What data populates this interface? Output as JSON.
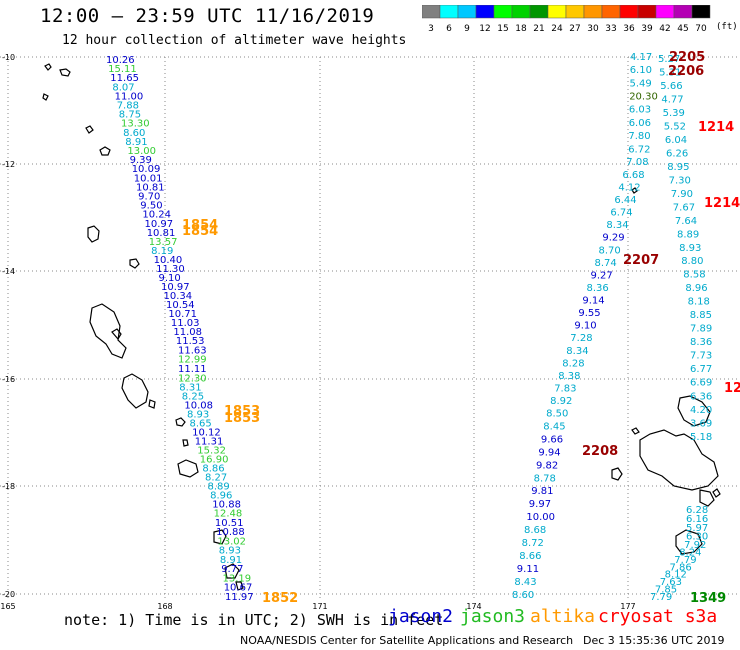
{
  "header": {
    "title": "12:00 – 23:59 UTC 11/16/2019",
    "subtitle": "12 hour collection of altimeter wave heights"
  },
  "legend": {
    "unit": "(ft)",
    "bins": [
      {
        "label": "3",
        "color": "#808080"
      },
      {
        "label": "6",
        "color": "#00ffff"
      },
      {
        "label": "9",
        "color": "#00c8ff"
      },
      {
        "label": "12",
        "color": "#0000ff"
      },
      {
        "label": "15",
        "color": "#00ff00"
      },
      {
        "label": "18",
        "color": "#00d200"
      },
      {
        "label": "21",
        "color": "#009600"
      },
      {
        "label": "24",
        "color": "#ffff00"
      },
      {
        "label": "27",
        "color": "#ffc800"
      },
      {
        "label": "30",
        "color": "#ff9600"
      },
      {
        "label": "33",
        "color": "#ff6400"
      },
      {
        "label": "36",
        "color": "#ff0000"
      },
      {
        "label": "39",
        "color": "#c80000"
      },
      {
        "label": "42",
        "color": "#ff00ff"
      },
      {
        "label": "45",
        "color": "#b400b4"
      },
      {
        "label": "70",
        "color": "#000000"
      }
    ]
  },
  "axes": {
    "lat_labels": [
      "-10",
      "-12",
      "-14",
      "-16",
      "-18",
      "-20"
    ],
    "lon_labels": [
      "165",
      "168",
      "171",
      "174",
      "177"
    ]
  },
  "colors": {
    "jason2": "#0000cc",
    "jason3": "#22bb22",
    "altika": "#ff9900",
    "cryosat": "#ff0000",
    "blue": "#0000cc",
    "cyan": "#00aacc",
    "green": "#33cc33",
    "dark": "#990000",
    "olive": "#336600",
    "darkgreen": "#008800"
  },
  "tracks": [
    {
      "id": "west-track",
      "points": [
        {
          "v": "10.26",
          "c": "blue"
        },
        {
          "v": "15.11",
          "c": "green"
        },
        {
          "v": "11.65",
          "c": "blue"
        },
        {
          "v": "8.07",
          "c": "cyan"
        },
        {
          "v": "11.00",
          "c": "blue"
        },
        {
          "v": "7.88",
          "c": "cyan"
        },
        {
          "v": "8.75",
          "c": "cyan"
        },
        {
          "v": "13.30",
          "c": "green"
        },
        {
          "v": "8.60",
          "c": "cyan"
        },
        {
          "v": "8.91",
          "c": "cyan"
        },
        {
          "v": "13.00",
          "c": "green"
        },
        {
          "v": "9.39",
          "c": "blue"
        },
        {
          "v": "10.09",
          "c": "blue"
        },
        {
          "v": "10.01",
          "c": "blue"
        },
        {
          "v": "10.81",
          "c": "blue"
        },
        {
          "v": "9.70",
          "c": "blue"
        },
        {
          "v": "9.50",
          "c": "blue"
        },
        {
          "v": "10.24",
          "c": "blue"
        },
        {
          "v": "10.97",
          "c": "blue"
        },
        {
          "v": "10.81",
          "c": "blue"
        },
        {
          "v": "13.57",
          "c": "green"
        },
        {
          "v": "8.19",
          "c": "cyan"
        },
        {
          "v": "10.40",
          "c": "blue"
        },
        {
          "v": "11.30",
          "c": "blue"
        },
        {
          "v": "9.10",
          "c": "blue"
        },
        {
          "v": "10.97",
          "c": "blue"
        },
        {
          "v": "10.34",
          "c": "blue"
        },
        {
          "v": "10.54",
          "c": "blue"
        },
        {
          "v": "10.71",
          "c": "blue"
        },
        {
          "v": "11.03",
          "c": "blue"
        },
        {
          "v": "11.08",
          "c": "blue"
        },
        {
          "v": "11.53",
          "c": "blue"
        },
        {
          "v": "11.63",
          "c": "blue"
        },
        {
          "v": "12.99",
          "c": "green"
        },
        {
          "v": "11.11",
          "c": "blue"
        },
        {
          "v": "12.30",
          "c": "green"
        },
        {
          "v": "8.31",
          "c": "cyan"
        },
        {
          "v": "8.25",
          "c": "cyan"
        },
        {
          "v": "10.08",
          "c": "blue"
        },
        {
          "v": "8.93",
          "c": "cyan"
        },
        {
          "v": "8.65",
          "c": "cyan"
        },
        {
          "v": "10.12",
          "c": "blue"
        },
        {
          "v": "11.31",
          "c": "blue"
        },
        {
          "v": "15.32",
          "c": "green"
        },
        {
          "v": "16.90",
          "c": "green"
        },
        {
          "v": "8.86",
          "c": "cyan"
        },
        {
          "v": "8.27",
          "c": "cyan"
        },
        {
          "v": "8.89",
          "c": "cyan"
        },
        {
          "v": "8.96",
          "c": "cyan"
        },
        {
          "v": "10.88",
          "c": "blue"
        },
        {
          "v": "12.48",
          "c": "green"
        },
        {
          "v": "10.51",
          "c": "blue"
        },
        {
          "v": "10.88",
          "c": "blue"
        },
        {
          "v": "13.02",
          "c": "green"
        },
        {
          "v": "8.93",
          "c": "cyan"
        },
        {
          "v": "8.91",
          "c": "cyan"
        },
        {
          "v": "9.77",
          "c": "blue"
        },
        {
          "v": "13.19",
          "c": "green"
        },
        {
          "v": "10.67",
          "c": "blue"
        },
        {
          "v": "11.97",
          "c": "blue"
        }
      ]
    },
    {
      "id": "middle-track",
      "points": [
        {
          "v": "4.17",
          "c": "cyan"
        },
        {
          "v": "6.10",
          "c": "cyan"
        },
        {
          "v": "5.49",
          "c": "cyan"
        },
        {
          "v": "20.30",
          "c": "olive"
        },
        {
          "v": "6.03",
          "c": "cyan"
        },
        {
          "v": "6.06",
          "c": "cyan"
        },
        {
          "v": "7.80",
          "c": "cyan"
        },
        {
          "v": "6.72",
          "c": "cyan"
        },
        {
          "v": "7.08",
          "c": "cyan"
        },
        {
          "v": "6.68",
          "c": "cyan"
        },
        {
          "v": "4.12",
          "c": "cyan"
        },
        {
          "v": "6.44",
          "c": "cyan"
        },
        {
          "v": "6.74",
          "c": "cyan"
        },
        {
          "v": "8.34",
          "c": "cyan"
        },
        {
          "v": "9.29",
          "c": "blue"
        },
        {
          "v": "8.70",
          "c": "cyan"
        },
        {
          "v": "8.74",
          "c": "cyan"
        },
        {
          "v": "9.27",
          "c": "blue"
        },
        {
          "v": "8.36",
          "c": "cyan"
        },
        {
          "v": "9.14",
          "c": "blue"
        },
        {
          "v": "9.55",
          "c": "blue"
        },
        {
          "v": "9.10",
          "c": "blue"
        },
        {
          "v": "7.28",
          "c": "cyan"
        },
        {
          "v": "8.34",
          "c": "cyan"
        },
        {
          "v": "8.28",
          "c": "cyan"
        },
        {
          "v": "8.38",
          "c": "cyan"
        },
        {
          "v": "7.83",
          "c": "cyan"
        },
        {
          "v": "8.92",
          "c": "cyan"
        },
        {
          "v": "8.50",
          "c": "cyan"
        },
        {
          "v": "8.45",
          "c": "cyan"
        },
        {
          "v": "9.66",
          "c": "blue"
        },
        {
          "v": "9.94",
          "c": "blue"
        },
        {
          "v": "9.82",
          "c": "blue"
        },
        {
          "v": "8.78",
          "c": "cyan"
        },
        {
          "v": "9.81",
          "c": "blue"
        },
        {
          "v": "9.97",
          "c": "blue"
        },
        {
          "v": "10.00",
          "c": "blue"
        },
        {
          "v": "8.68",
          "c": "cyan"
        },
        {
          "v": "8.72",
          "c": "cyan"
        },
        {
          "v": "8.66",
          "c": "cyan"
        },
        {
          "v": "9.11",
          "c": "blue"
        },
        {
          "v": "8.43",
          "c": "cyan"
        },
        {
          "v": "8.60",
          "c": "cyan"
        }
      ]
    },
    {
      "id": "east-track",
      "points": [
        {
          "v": "5.27",
          "c": "cyan"
        },
        {
          "v": "5.31",
          "c": "cyan"
        },
        {
          "v": "5.66",
          "c": "cyan"
        },
        {
          "v": "4.77",
          "c": "cyan"
        },
        {
          "v": "5.39",
          "c": "cyan"
        },
        {
          "v": "5.52",
          "c": "cyan"
        },
        {
          "v": "6.04",
          "c": "cyan"
        },
        {
          "v": "6.26",
          "c": "cyan"
        },
        {
          "v": "8.95",
          "c": "cyan"
        },
        {
          "v": "7.30",
          "c": "cyan"
        },
        {
          "v": "7.90",
          "c": "cyan"
        },
        {
          "v": "7.67",
          "c": "cyan"
        },
        {
          "v": "7.64",
          "c": "cyan"
        },
        {
          "v": "8.89",
          "c": "cyan"
        },
        {
          "v": "8.93",
          "c": "cyan"
        },
        {
          "v": "8.80",
          "c": "cyan"
        },
        {
          "v": "8.58",
          "c": "cyan"
        },
        {
          "v": "8.96",
          "c": "cyan"
        },
        {
          "v": "8.18",
          "c": "cyan"
        },
        {
          "v": "8.85",
          "c": "cyan"
        },
        {
          "v": "7.89",
          "c": "cyan"
        },
        {
          "v": "8.36",
          "c": "cyan"
        },
        {
          "v": "7.73",
          "c": "cyan"
        },
        {
          "v": "6.77",
          "c": "cyan"
        },
        {
          "v": "6.69",
          "c": "cyan"
        },
        {
          "v": "6.36",
          "c": "cyan"
        },
        {
          "v": "4.20",
          "c": "cyan"
        },
        {
          "v": "3.69",
          "c": "cyan"
        },
        {
          "v": "5.18",
          "c": "cyan"
        }
      ]
    },
    {
      "id": "southeast-track",
      "points": [
        {
          "v": "6.28",
          "c": "cyan"
        },
        {
          "v": "6.16",
          "c": "cyan"
        },
        {
          "v": "5.97",
          "c": "cyan"
        },
        {
          "v": "6.30",
          "c": "cyan"
        },
        {
          "v": "7.92",
          "c": "cyan"
        },
        {
          "v": "8.24",
          "c": "cyan"
        },
        {
          "v": "7.79",
          "c": "cyan"
        },
        {
          "v": "7.86",
          "c": "cyan"
        },
        {
          "v": "8.12",
          "c": "cyan"
        },
        {
          "v": "7.63",
          "c": "cyan"
        },
        {
          "v": "7.85",
          "c": "cyan"
        },
        {
          "v": "7.79",
          "c": "cyan"
        }
      ]
    }
  ],
  "time_labels": [
    {
      "t": "2205",
      "c": "dark"
    },
    {
      "t": "2206",
      "c": "dark"
    },
    {
      "t": "1214",
      "c": "cryosat"
    },
    {
      "t": "1214",
      "c": "cryosat"
    },
    {
      "t": "1854",
      "c": "altika"
    },
    {
      "t": "1854",
      "c": "altika"
    },
    {
      "t": "2207",
      "c": "dark"
    },
    {
      "t": "1853",
      "c": "altika"
    },
    {
      "t": "1853",
      "c": "altika"
    },
    {
      "t": "2208",
      "c": "dark"
    },
    {
      "t": "1852",
      "c": "altika"
    },
    {
      "t": "1349",
      "c": "darkgreen"
    },
    {
      "t": "12",
      "c": "cryosat"
    }
  ],
  "footer": {
    "note": "note: 1) Time is in UTC; 2) SWH is in feet",
    "sat_jason2": "jason2",
    "sat_jason3": "jason3",
    "sat_altika": "altika",
    "sat_cryosat": "cryosat s3a",
    "credit": "NOAA/NESDIS Center for Satellite Applications and Research",
    "timestamp": "Dec  3 15:35:36 UTC 2019"
  }
}
